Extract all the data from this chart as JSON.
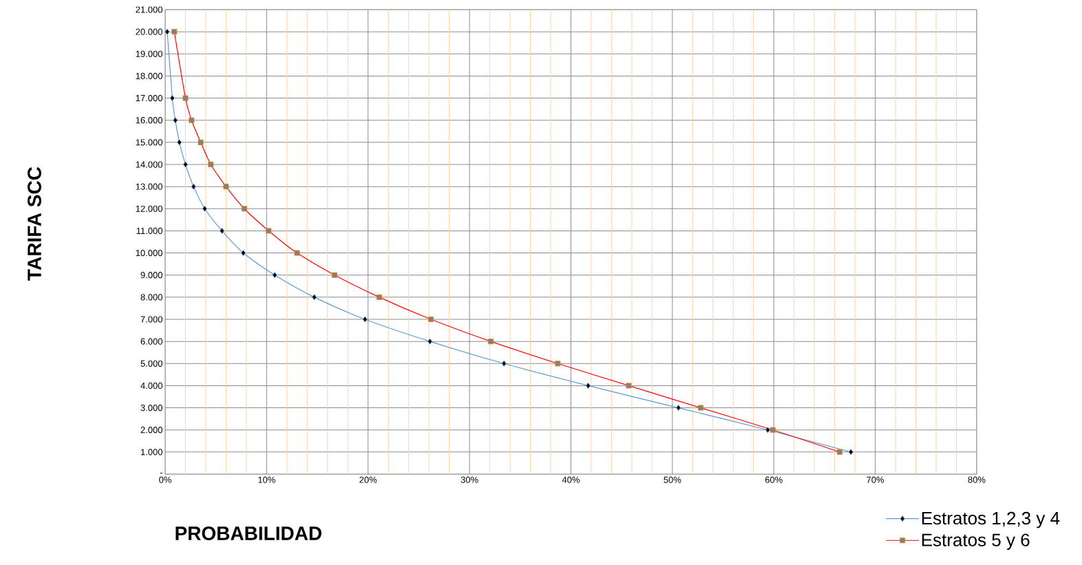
{
  "chart_data": {
    "type": "line",
    "xlabel": "PROBABILIDAD",
    "ylabel": "TARIFA  SCC",
    "series": [
      {
        "name": "Estratos 1,2,3 y 4",
        "color": "#5b9bd5",
        "marker": "diamond",
        "x": [
          0.2,
          0.7,
          1.0,
          1.4,
          2.0,
          2.8,
          3.9,
          5.6,
          7.7,
          10.8,
          14.7,
          19.7,
          26.1,
          33.4,
          41.7,
          50.6,
          59.4,
          67.6
        ],
        "values": [
          20000,
          17000,
          16000,
          15000,
          14000,
          13000,
          12000,
          11000,
          10000,
          9000,
          8000,
          7000,
          6000,
          5000,
          4000,
          3000,
          2000,
          1000
        ]
      },
      {
        "name": "Estratos 5 y 6",
        "color": "#ff0000",
        "marker": "square",
        "x": [
          0.9,
          2.0,
          2.6,
          3.5,
          4.5,
          6.0,
          7.8,
          10.2,
          13.0,
          16.7,
          21.1,
          26.2,
          32.1,
          38.7,
          45.7,
          52.8,
          59.9,
          66.5
        ],
        "values": [
          20000,
          17000,
          16000,
          15000,
          14000,
          13000,
          12000,
          11000,
          10000,
          9000,
          8000,
          7000,
          6000,
          5000,
          4000,
          3000,
          2000,
          1000
        ]
      }
    ],
    "xlim": [
      0,
      80
    ],
    "xticks": [
      {
        "value": 0,
        "label": "0%"
      },
      {
        "value": 2,
        "label": null
      },
      {
        "value": 4,
        "label": null
      },
      {
        "value": 6,
        "label": null
      },
      {
        "value": 8,
        "label": null
      },
      {
        "value": 10,
        "label": "10%"
      },
      {
        "value": 12,
        "label": null
      },
      {
        "value": 14,
        "label": null
      },
      {
        "value": 16,
        "label": null
      },
      {
        "value": 18,
        "label": null
      },
      {
        "value": 20,
        "label": "20%"
      },
      {
        "value": 22,
        "label": null
      },
      {
        "value": 24,
        "label": null
      },
      {
        "value": 26,
        "label": null
      },
      {
        "value": 28,
        "label": null
      },
      {
        "value": 30,
        "label": "30%"
      },
      {
        "value": 32,
        "label": null
      },
      {
        "value": 34,
        "label": null
      },
      {
        "value": 36,
        "label": null
      },
      {
        "value": 38,
        "label": null
      },
      {
        "value": 40,
        "label": "40%"
      },
      {
        "value": 42,
        "label": null
      },
      {
        "value": 44,
        "label": null
      },
      {
        "value": 46,
        "label": null
      },
      {
        "value": 48,
        "label": null
      },
      {
        "value": 50,
        "label": "50%"
      },
      {
        "value": 52,
        "label": null
      },
      {
        "value": 54,
        "label": null
      },
      {
        "value": 56,
        "label": null
      },
      {
        "value": 58,
        "label": null
      },
      {
        "value": 60,
        "label": "60%"
      },
      {
        "value": 62,
        "label": null
      },
      {
        "value": 64,
        "label": null
      },
      {
        "value": 66,
        "label": null
      },
      {
        "value": 68,
        "label": null
      },
      {
        "value": 70,
        "label": "70%"
      },
      {
        "value": 72,
        "label": null
      },
      {
        "value": 74,
        "label": null
      },
      {
        "value": 76,
        "label": null
      },
      {
        "value": 78,
        "label": null
      },
      {
        "value": 80,
        "label": "80%"
      }
    ],
    "ylim": [
      0,
      21000
    ],
    "yticks": [
      {
        "value": 0,
        "label": "-"
      },
      {
        "value": 1000,
        "label": "1.000"
      },
      {
        "value": 2000,
        "label": "2.000"
      },
      {
        "value": 3000,
        "label": "3.000"
      },
      {
        "value": 4000,
        "label": "4.000"
      },
      {
        "value": 5000,
        "label": "5.000"
      },
      {
        "value": 6000,
        "label": "6.000"
      },
      {
        "value": 7000,
        "label": "7.000"
      },
      {
        "value": 8000,
        "label": "8.000"
      },
      {
        "value": 9000,
        "label": "9.000"
      },
      {
        "value": 10000,
        "label": "10.000"
      },
      {
        "value": 11000,
        "label": "11.000"
      },
      {
        "value": 12000,
        "label": "12.000"
      },
      {
        "value": 13000,
        "label": "13.000"
      },
      {
        "value": 14000,
        "label": "14.000"
      },
      {
        "value": 15000,
        "label": "15.000"
      },
      {
        "value": 16000,
        "label": "16.000"
      },
      {
        "value": 17000,
        "label": "17.000"
      },
      {
        "value": 18000,
        "label": "18.000"
      },
      {
        "value": 19000,
        "label": "19.000"
      },
      {
        "value": 20000,
        "label": "20.000"
      },
      {
        "value": 21000,
        "label": "21.000"
      }
    ],
    "grid": true,
    "legend": "bottom right",
    "line_style": "solid"
  }
}
